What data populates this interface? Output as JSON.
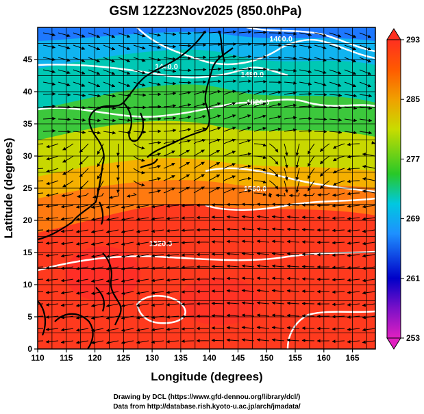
{
  "title": "GSM 12Z23Nov2025 (850.0hPa)",
  "xlabel": "Longitude (degrees)",
  "ylabel": "Latitude  (degrees)",
  "credits": {
    "line1": "Drawing by DCL (https://www.gfd-dennou.org/library/dcl/)",
    "line2": "Data from http://database.rish.kyoto-u.ac.jp/arch/jmadata/"
  },
  "map": {
    "lon_range": [
      110,
      169
    ],
    "lat_range": [
      0,
      50
    ],
    "lon_ticks": [
      110,
      115,
      120,
      125,
      130,
      135,
      140,
      145,
      150,
      155,
      160,
      165
    ],
    "lat_ticks": [
      0,
      5,
      10,
      15,
      20,
      25,
      30,
      35,
      40,
      45
    ],
    "grid_step": 2.5,
    "grid": true
  },
  "colorbar": {
    "min": 253,
    "max": 293,
    "tick_values": [
      253,
      261,
      269,
      277,
      285,
      293
    ],
    "tick_labels": [
      "253",
      "261",
      "269",
      "277",
      "285",
      "293"
    ],
    "colors": [
      "#e020c0",
      "#0000c8",
      "#1e90ff",
      "#00c8e0",
      "#28c828",
      "#c8dc00",
      "#f0a000",
      "#ff5a00",
      "#ff3020"
    ]
  },
  "contours": [
    {
      "label": "1400.0",
      "lon": 152.5,
      "lat": 47.8
    },
    {
      "label": "1440.0",
      "lon": 132.5,
      "lat": 43.5
    },
    {
      "label": "1480.0",
      "lon": 147.5,
      "lat": 42.3
    },
    {
      "label": "1520.0",
      "lon": 148.5,
      "lat": 38.0
    },
    {
      "label": "1560.0",
      "lon": 148.0,
      "lat": 24.5
    },
    {
      "label": "1520.0",
      "lon": 131.5,
      "lat": 16.0
    }
  ]
}
